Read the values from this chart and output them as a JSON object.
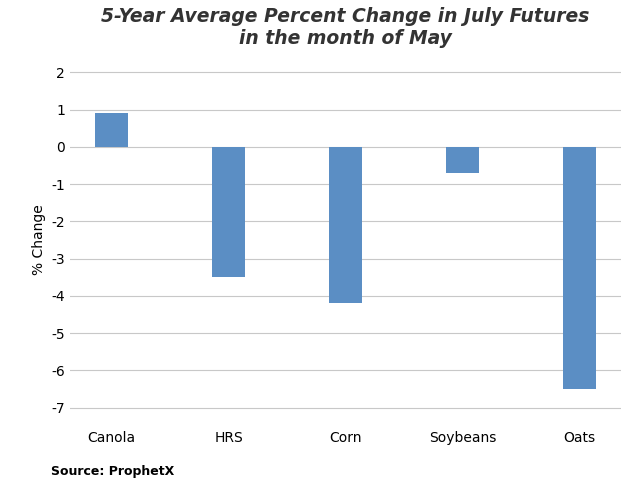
{
  "categories": [
    "Canola",
    "HRS",
    "Corn",
    "Soybeans",
    "Oats"
  ],
  "values": [
    0.9,
    -3.5,
    -4.2,
    -0.7,
    -6.5
  ],
  "bar_color": "#5b8ec4",
  "title_line1": "5-Year Average Percent Change in July Futures",
  "title_line2": "in the month of May",
  "ylabel": "% Change",
  "source": "Source: ProphetX",
  "ylim": [
    -7.4,
    2.4
  ],
  "yticks": [
    -7,
    -6,
    -5,
    -4,
    -3,
    -2,
    -1,
    0,
    1,
    2
  ],
  "background_color": "#ffffff",
  "bar_width": 0.28,
  "title_fontsize": 13.5,
  "title_fontstyle": "italic",
  "title_fontweight": "bold",
  "ylabel_fontsize": 10,
  "xtick_fontsize": 10,
  "ytick_fontsize": 10,
  "source_fontsize": 9,
  "grid_color": "#c8c8c8",
  "grid_linewidth": 0.8,
  "title_color": "#333333"
}
